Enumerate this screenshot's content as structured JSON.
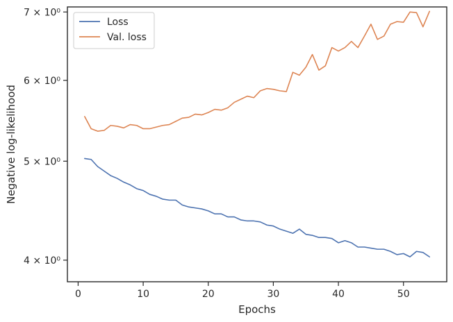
{
  "chart_data": {
    "type": "line",
    "xlabel": "Epochs",
    "ylabel": "Negative log-likelihood",
    "xlim": [
      -1.65,
      56.65
    ],
    "ylim": [
      3.81,
      7.08
    ],
    "y_scale": "log",
    "x_ticks": [
      0,
      10,
      20,
      30,
      40,
      50
    ],
    "x_tick_labels": [
      "0",
      "10",
      "20",
      "30",
      "40",
      "50"
    ],
    "y_ticks": [
      4,
      5,
      6,
      7
    ],
    "y_tick_labels": [
      "4 × 10⁰",
      "5 × 10⁰",
      "6 × 10⁰",
      "7 × 10⁰"
    ],
    "grid": false,
    "legend_position": "upper-left",
    "x": [
      1,
      2,
      3,
      4,
      5,
      6,
      7,
      8,
      9,
      10,
      11,
      12,
      13,
      14,
      15,
      16,
      17,
      18,
      19,
      20,
      21,
      22,
      23,
      24,
      25,
      26,
      27,
      28,
      29,
      30,
      31,
      32,
      33,
      34,
      35,
      36,
      37,
      38,
      39,
      40,
      41,
      42,
      43,
      44,
      45,
      46,
      47,
      48,
      49,
      50,
      51,
      52,
      53,
      54
    ],
    "series": [
      {
        "name": "Loss",
        "color": "#4c72b0",
        "values": [
          5.03,
          5.02,
          4.94,
          4.89,
          4.84,
          4.81,
          4.77,
          4.74,
          4.7,
          4.68,
          4.64,
          4.62,
          4.59,
          4.58,
          4.58,
          4.53,
          4.51,
          4.5,
          4.49,
          4.47,
          4.44,
          4.44,
          4.41,
          4.41,
          4.38,
          4.37,
          4.37,
          4.36,
          4.33,
          4.32,
          4.29,
          4.27,
          4.25,
          4.29,
          4.24,
          4.23,
          4.21,
          4.21,
          4.2,
          4.16,
          4.18,
          4.16,
          4.12,
          4.12,
          4.11,
          4.1,
          4.1,
          4.08,
          4.05,
          4.06,
          4.03,
          4.08,
          4.07,
          4.03
        ]
      },
      {
        "name": "Val. loss",
        "color": "#dd8452",
        "values": [
          5.53,
          5.38,
          5.35,
          5.36,
          5.42,
          5.41,
          5.39,
          5.43,
          5.42,
          5.38,
          5.38,
          5.4,
          5.42,
          5.43,
          5.47,
          5.51,
          5.52,
          5.56,
          5.55,
          5.58,
          5.62,
          5.61,
          5.64,
          5.71,
          5.75,
          5.79,
          5.77,
          5.86,
          5.89,
          5.88,
          5.86,
          5.85,
          6.11,
          6.07,
          6.18,
          6.36,
          6.14,
          6.2,
          6.46,
          6.41,
          6.46,
          6.55,
          6.46,
          6.63,
          6.81,
          6.58,
          6.63,
          6.81,
          6.85,
          6.84,
          7.0,
          6.99,
          6.77,
          7.01
        ]
      }
    ]
  }
}
